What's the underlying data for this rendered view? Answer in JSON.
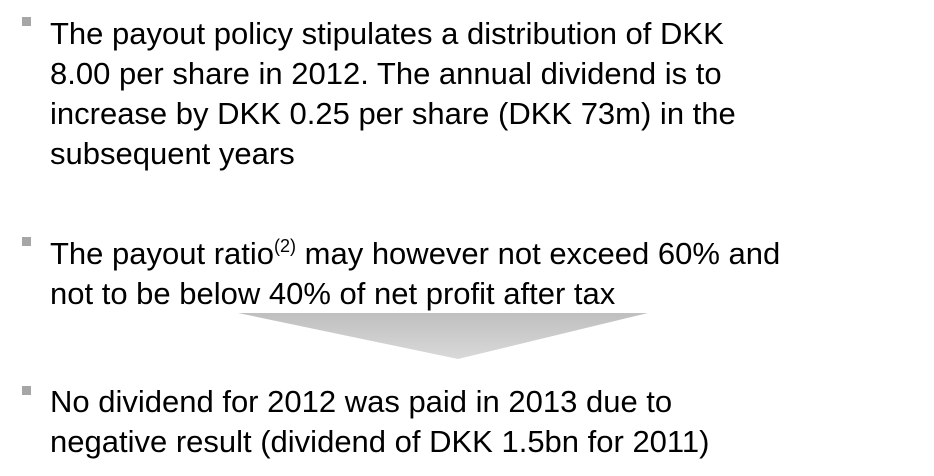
{
  "bullets": [
    {
      "lines": [
        "The payout policy stipulates a distribution of DKK",
        "8.00 per share in 2012. The annual dividend is to",
        "increase by DKK 0.25 per share (DKK 73m) in the",
        "subsequent years"
      ]
    },
    {
      "lines": [
        "The payout ratio",
        "(2)",
        " may however not exceed 60% and",
        "not to be below 40% of net profit after tax"
      ]
    },
    {
      "lines": [
        "No dividend for 2012 was paid in 2013 due to",
        "negative result (dividend of DKK 1.5bn for 2011)"
      ]
    }
  ]
}
